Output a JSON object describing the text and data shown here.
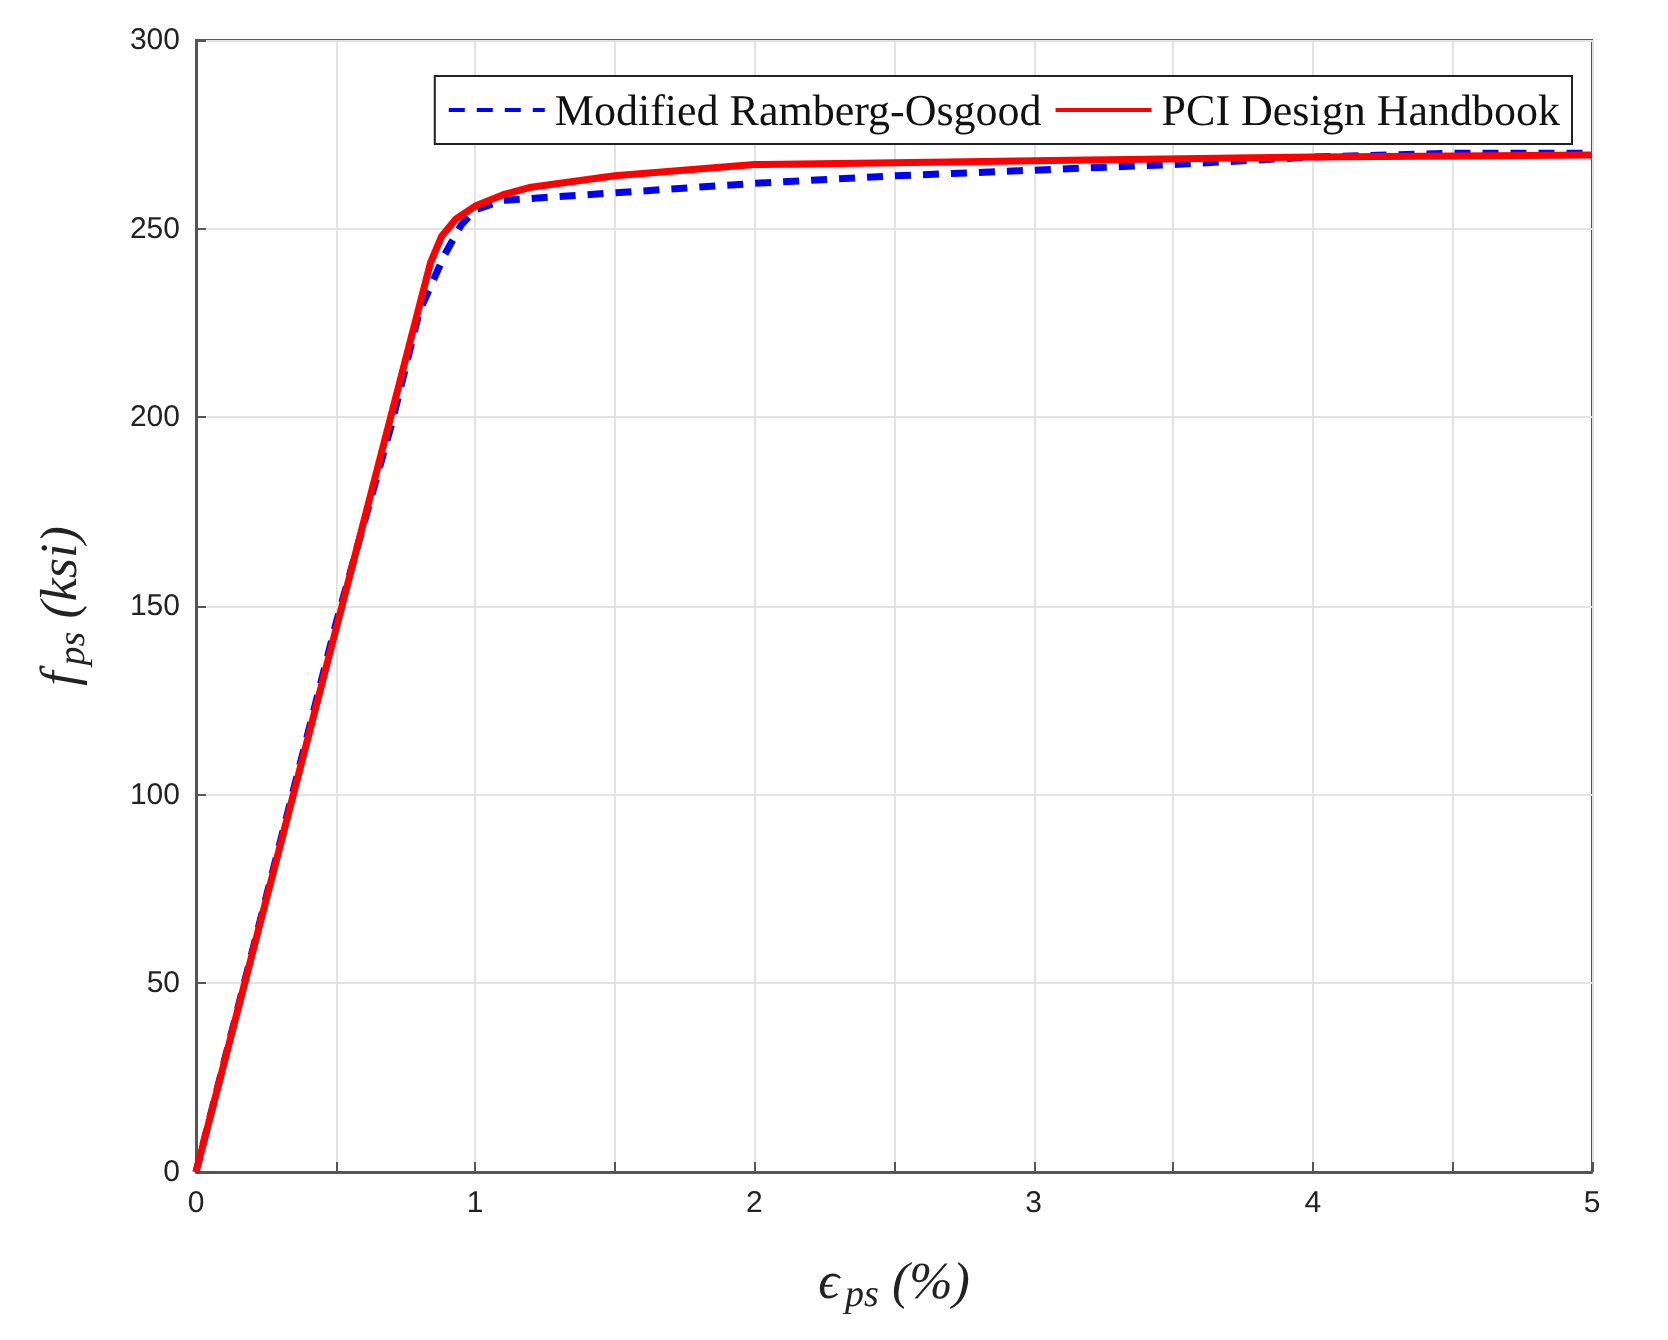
{
  "chart_data": {
    "type": "line",
    "xlabel": "ϵ$_{ps}$ (%)",
    "ylabel": "f$_{ps}$ (ksi)",
    "xlim": [
      0,
      5
    ],
    "xticks": [
      0,
      {
        "value": 0.5,
        "label": null
      },
      1,
      {
        "value": 1.5,
        "label": null
      },
      2,
      {
        "value": 2.5,
        "label": null
      },
      3,
      {
        "value": 3.5,
        "label": null
      },
      4,
      {
        "value": 4.5,
        "label": null
      },
      5
    ],
    "ylim": [
      0,
      300
    ],
    "yticks": [
      0,
      50,
      100,
      150,
      200,
      250,
      300
    ],
    "grid": true,
    "legend": "top right",
    "marker": "none",
    "series": [
      {
        "name": "Modified Ramberg-Osgood",
        "color": "#0000ff",
        "line_style": "dashed",
        "x": [
          0,
          0.5,
          0.7,
          0.8,
          0.89,
          0.95,
          1.0,
          1.1,
          1.5,
          2,
          2.5,
          3,
          3.5,
          4,
          4.5,
          5
        ],
        "values": [
          0,
          145,
          198,
          228,
          243,
          251,
          255,
          257.5,
          259.5,
          262,
          264,
          265.5,
          267,
          269,
          270,
          270
        ]
      },
      {
        "name": "PCI Design Handbook",
        "color": "#ff0000",
        "line_style": "solid",
        "x": [
          0,
          0.84,
          0.88,
          0.93,
          1.0,
          1.1,
          1.2,
          1.5,
          2,
          2.5,
          3,
          4,
          5
        ],
        "values": [
          0,
          241,
          248,
          252.5,
          256,
          259,
          261,
          264,
          267,
          267.5,
          268,
          269,
          269.5
        ]
      }
    ]
  }
}
